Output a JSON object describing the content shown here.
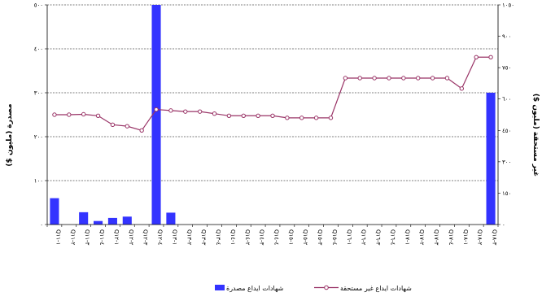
{
  "chart_data": {
    "type": "bar",
    "categories": [
      "Q١-١١",
      "Q٢-١١",
      "Q٣-١١",
      "Q٤-١١",
      "Q١-١٢",
      "Q٢-١٢",
      "Q٣-١٢",
      "Q٤-١٢",
      "Q١-١٣",
      "Q٢-١٣",
      "Q٣-١٣",
      "Q٤-١٣",
      "Q١-١٤",
      "Q٢-١٤",
      "Q٣-١٤",
      "Q٤-١٤",
      "Q١-١٥",
      "Q٢-١٥",
      "Q٣-١٥",
      "Q٤-١٥",
      "Q١-١٦",
      "Q٢-١٦",
      "Q٣-١٦",
      "Q٤-١٦",
      "Q١-١٧",
      "Q٢-١٧",
      "Q٣-١٧",
      "Q٤-١٧",
      "Q١-١٨",
      "Q٢-١٨",
      "Q٣-١٨"
    ],
    "series": [
      {
        "name": "شهادات ايداع مصدرة",
        "type": "bar",
        "axis": "left",
        "color": "#3333ff",
        "values": [
          60,
          0,
          28,
          8,
          15,
          18,
          0,
          500,
          27,
          0,
          0,
          0,
          0,
          0,
          0,
          0,
          0,
          0,
          0,
          0,
          0,
          0,
          0,
          0,
          0,
          0,
          0,
          0,
          0,
          0,
          300
        ]
      },
      {
        "name": "شهادات ايداع غير مستحقة",
        "type": "line",
        "axis": "right",
        "color": "#993366",
        "values": [
          525,
          525,
          527,
          520,
          477,
          470,
          450,
          550,
          545,
          540,
          540,
          530,
          520,
          520,
          520,
          520,
          510,
          510,
          510,
          510,
          700,
          700,
          700,
          700,
          700,
          700,
          700,
          700,
          650,
          800,
          800
        ]
      }
    ],
    "ylabel_left": "مصدرة (مليون $)",
    "ylabel_right": "غير مستحقة (مليون $)",
    "ylim_left": [
      0,
      500
    ],
    "ylim_right": [
      0,
      1050
    ],
    "yticks_left": [
      "٠",
      "١٠٠",
      "٢٠٠",
      "٣٠٠",
      "٤٠٠",
      "٥٠٠"
    ],
    "yticks_right": [
      "٠",
      "١٥٠",
      "٣٠٠",
      "٤٥٠",
      "٦٠٠",
      "٧٥٠",
      "٩٠٠",
      "١٠٥٠"
    ],
    "grid": true,
    "legend_position": "bottom"
  }
}
